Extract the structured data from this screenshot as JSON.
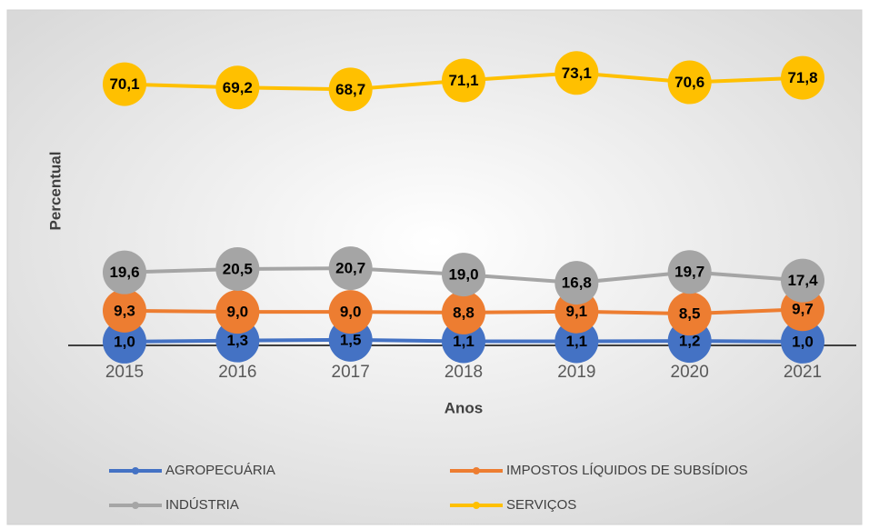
{
  "chart_data": {
    "type": "line",
    "x_label": "Anos",
    "y_label": "Percentual",
    "categories": [
      "2015",
      "2016",
      "2017",
      "2018",
      "2019",
      "2020",
      "2021"
    ],
    "ylim": [
      0,
      80
    ],
    "legend": "bottom",
    "series": [
      {
        "name": "AGROPECUÁRIA",
        "color": "#4472c4",
        "values": [
          1.0,
          1.3,
          1.5,
          1.1,
          1.1,
          1.2,
          1.0
        ],
        "value_labels": [
          "1,0",
          "1,3",
          "1,5",
          "1,1",
          "1,1",
          "1,2",
          "1,0"
        ]
      },
      {
        "name": "IMPOSTOS LÍQUIDOS DE SUBSÍDIOS",
        "color": "#ed7d31",
        "values": [
          9.3,
          9.0,
          9.0,
          8.8,
          9.1,
          8.5,
          9.7
        ],
        "value_labels": [
          "9,3",
          "9,0",
          "9,0",
          "8,8",
          "9,1",
          "8,5",
          "9,7"
        ]
      },
      {
        "name": "INDÚSTRIA",
        "color": "#a5a5a5",
        "values": [
          19.6,
          20.5,
          20.7,
          19.0,
          16.8,
          19.7,
          17.4
        ],
        "value_labels": [
          "19,6",
          "20,5",
          "20,7",
          "19,0",
          "16,8",
          "19,7",
          "17,4"
        ]
      },
      {
        "name": "SERVIÇOS",
        "color": "#ffc000",
        "values": [
          70.1,
          69.2,
          68.7,
          71.1,
          73.1,
          70.6,
          71.8
        ],
        "value_labels": [
          "70,1",
          "69,2",
          "68,7",
          "71,1",
          "73,1",
          "70,6",
          "71,8"
        ]
      }
    ]
  }
}
